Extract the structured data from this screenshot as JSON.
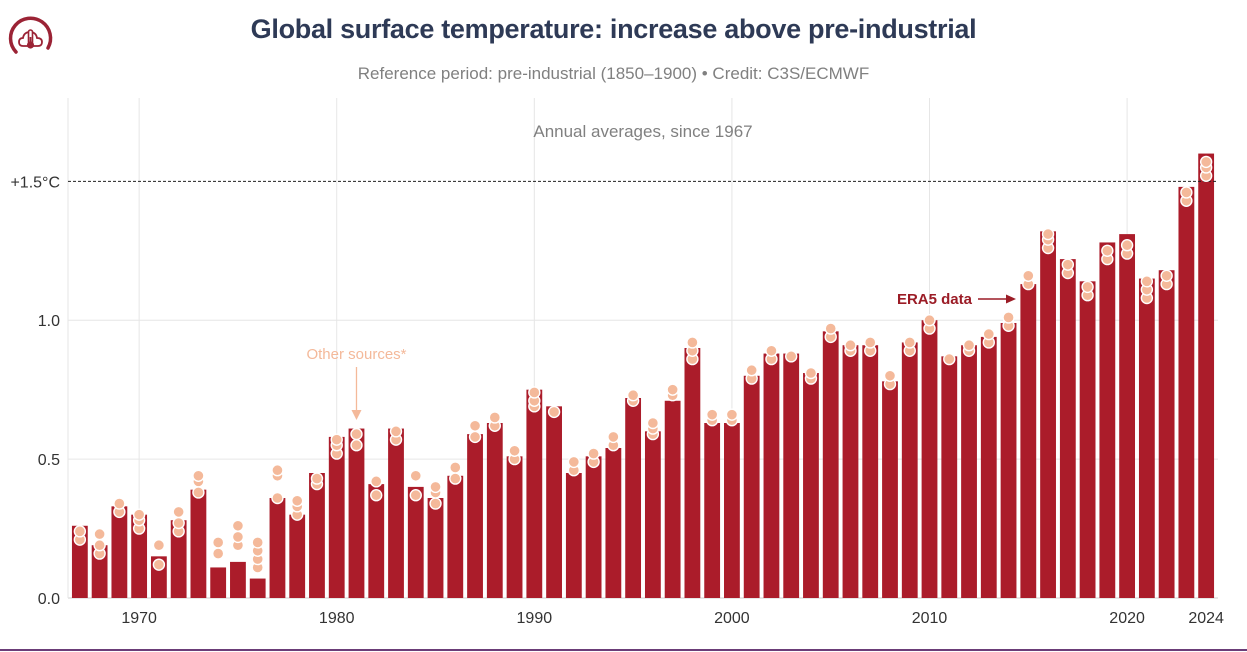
{
  "header": {
    "title": "Global surface temperature: increase above pre-industrial",
    "subtitle": "Reference period: pre-industrial (1850–1900) • Credit: C3S/ECMWF"
  },
  "logo": {
    "icon": "cloud-thermometer-icon",
    "color": "#9b2335"
  },
  "colors": {
    "bar": "#ab1c2a",
    "other_sources": "#f4b99a",
    "era5_label": "#9b1c26",
    "threshold_line": "#222222"
  },
  "chart_data": {
    "type": "bar",
    "title": "Global surface temperature: increase above pre-industrial",
    "subtitle": "Annual averages, since 1967",
    "xlim": [
      1966.4,
      2024.6
    ],
    "ylim": [
      0,
      1.8
    ],
    "xticks": [
      1970,
      1980,
      1990,
      2000,
      2010,
      2020,
      2024
    ],
    "yticks": [
      0,
      0.5,
      1.0
    ],
    "ytick_labels": [
      "0.0",
      "0.5",
      "1.0"
    ],
    "threshold": {
      "value": 1.5,
      "label": "+1.5°C"
    },
    "grid": true,
    "series": [
      {
        "name": "ERA5 data",
        "x": [
          1967,
          1968,
          1969,
          1970,
          1971,
          1972,
          1973,
          1974,
          1975,
          1976,
          1977,
          1978,
          1979,
          1980,
          1981,
          1982,
          1983,
          1984,
          1985,
          1986,
          1987,
          1988,
          1989,
          1990,
          1991,
          1992,
          1993,
          1994,
          1995,
          1996,
          1997,
          1998,
          1999,
          2000,
          2001,
          2002,
          2003,
          2004,
          2005,
          2006,
          2007,
          2008,
          2009,
          2010,
          2011,
          2012,
          2013,
          2014,
          2015,
          2016,
          2017,
          2018,
          2019,
          2020,
          2021,
          2022,
          2023,
          2024
        ],
        "values": [
          0.26,
          0.19,
          0.33,
          0.3,
          0.15,
          0.28,
          0.39,
          0.11,
          0.13,
          0.07,
          0.36,
          0.3,
          0.45,
          0.58,
          0.61,
          0.41,
          0.61,
          0.4,
          0.36,
          0.44,
          0.59,
          0.63,
          0.51,
          0.75,
          0.69,
          0.45,
          0.51,
          0.54,
          0.72,
          0.6,
          0.71,
          0.9,
          0.63,
          0.63,
          0.8,
          0.88,
          0.88,
          0.81,
          0.96,
          0.91,
          0.91,
          0.78,
          0.92,
          1.0,
          0.87,
          0.91,
          0.94,
          0.99,
          1.13,
          1.32,
          1.22,
          1.14,
          1.28,
          1.31,
          1.15,
          1.18,
          1.48,
          1.6
        ]
      },
      {
        "name": "Other sources*",
        "points": [
          [
            1967,
            0.21
          ],
          [
            1967,
            0.24
          ],
          [
            1968,
            0.16
          ],
          [
            1968,
            0.19
          ],
          [
            1968,
            0.23
          ],
          [
            1969,
            0.31
          ],
          [
            1969,
            0.34
          ],
          [
            1970,
            0.25
          ],
          [
            1970,
            0.28
          ],
          [
            1970,
            0.3
          ],
          [
            1971,
            0.12
          ],
          [
            1971,
            0.19
          ],
          [
            1972,
            0.24
          ],
          [
            1972,
            0.27
          ],
          [
            1972,
            0.31
          ],
          [
            1973,
            0.38
          ],
          [
            1973,
            0.42
          ],
          [
            1973,
            0.44
          ],
          [
            1974,
            0.16
          ],
          [
            1974,
            0.2
          ],
          [
            1975,
            0.19
          ],
          [
            1975,
            0.22
          ],
          [
            1975,
            0.26
          ],
          [
            1976,
            0.11
          ],
          [
            1976,
            0.14
          ],
          [
            1976,
            0.17
          ],
          [
            1976,
            0.2
          ],
          [
            1977,
            0.36
          ],
          [
            1977,
            0.44
          ],
          [
            1977,
            0.46
          ],
          [
            1978,
            0.3
          ],
          [
            1978,
            0.33
          ],
          [
            1978,
            0.35
          ],
          [
            1979,
            0.41
          ],
          [
            1979,
            0.43
          ],
          [
            1980,
            0.52
          ],
          [
            1980,
            0.55
          ],
          [
            1980,
            0.57
          ],
          [
            1981,
            0.55
          ],
          [
            1981,
            0.59
          ],
          [
            1982,
            0.37
          ],
          [
            1982,
            0.42
          ],
          [
            1983,
            0.57
          ],
          [
            1983,
            0.6
          ],
          [
            1984,
            0.37
          ],
          [
            1984,
            0.44
          ],
          [
            1985,
            0.34
          ],
          [
            1985,
            0.38
          ],
          [
            1985,
            0.4
          ],
          [
            1986,
            0.43
          ],
          [
            1986,
            0.47
          ],
          [
            1987,
            0.58
          ],
          [
            1987,
            0.62
          ],
          [
            1988,
            0.62
          ],
          [
            1988,
            0.65
          ],
          [
            1989,
            0.5
          ],
          [
            1989,
            0.53
          ],
          [
            1990,
            0.69
          ],
          [
            1990,
            0.71
          ],
          [
            1990,
            0.74
          ],
          [
            1991,
            0.67
          ],
          [
            1992,
            0.46
          ],
          [
            1992,
            0.49
          ],
          [
            1993,
            0.49
          ],
          [
            1993,
            0.52
          ],
          [
            1994,
            0.55
          ],
          [
            1994,
            0.58
          ],
          [
            1995,
            0.71
          ],
          [
            1995,
            0.73
          ],
          [
            1996,
            0.59
          ],
          [
            1996,
            0.61
          ],
          [
            1996,
            0.63
          ],
          [
            1997,
            0.73
          ],
          [
            1997,
            0.75
          ],
          [
            1998,
            0.86
          ],
          [
            1998,
            0.89
          ],
          [
            1998,
            0.92
          ],
          [
            1999,
            0.64
          ],
          [
            1999,
            0.66
          ],
          [
            2000,
            0.64
          ],
          [
            2000,
            0.66
          ],
          [
            2001,
            0.79
          ],
          [
            2001,
            0.82
          ],
          [
            2002,
            0.86
          ],
          [
            2002,
            0.89
          ],
          [
            2003,
            0.87
          ],
          [
            2004,
            0.79
          ],
          [
            2004,
            0.81
          ],
          [
            2005,
            0.94
          ],
          [
            2005,
            0.97
          ],
          [
            2006,
            0.89
          ],
          [
            2006,
            0.91
          ],
          [
            2007,
            0.89
          ],
          [
            2007,
            0.92
          ],
          [
            2008,
            0.77
          ],
          [
            2008,
            0.8
          ],
          [
            2009,
            0.89
          ],
          [
            2009,
            0.92
          ],
          [
            2010,
            0.97
          ],
          [
            2010,
            1.0
          ],
          [
            2011,
            0.86
          ],
          [
            2012,
            0.89
          ],
          [
            2012,
            0.91
          ],
          [
            2013,
            0.92
          ],
          [
            2013,
            0.95
          ],
          [
            2014,
            0.98
          ],
          [
            2014,
            1.01
          ],
          [
            2015,
            1.13
          ],
          [
            2015,
            1.16
          ],
          [
            2016,
            1.26
          ],
          [
            2016,
            1.29
          ],
          [
            2016,
            1.31
          ],
          [
            2017,
            1.17
          ],
          [
            2017,
            1.2
          ],
          [
            2018,
            1.09
          ],
          [
            2018,
            1.12
          ],
          [
            2019,
            1.22
          ],
          [
            2019,
            1.25
          ],
          [
            2020,
            1.24
          ],
          [
            2020,
            1.27
          ],
          [
            2021,
            1.08
          ],
          [
            2021,
            1.11
          ],
          [
            2021,
            1.14
          ],
          [
            2022,
            1.13
          ],
          [
            2022,
            1.16
          ],
          [
            2023,
            1.43
          ],
          [
            2023,
            1.46
          ],
          [
            2024,
            1.52
          ],
          [
            2024,
            1.55
          ],
          [
            2024,
            1.57
          ]
        ]
      }
    ]
  }
}
